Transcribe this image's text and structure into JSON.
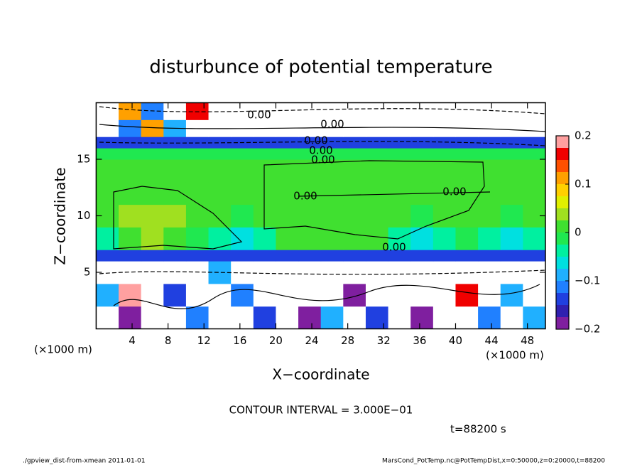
{
  "chart_data": {
    "type": "heatmap",
    "title": "disturbunce of potential temperature",
    "xlabel": "X−coordinate",
    "ylabel": "Z−coordinate",
    "xlim": [
      0,
      50
    ],
    "ylim": [
      0,
      20
    ],
    "xticks": [
      4,
      8,
      12,
      16,
      20,
      24,
      28,
      32,
      36,
      40,
      44,
      48
    ],
    "yticks": [
      5,
      10,
      15
    ],
    "x_edges": [
      0,
      2.5,
      5,
      7.5,
      10,
      12.5,
      15,
      17.5,
      20,
      22.5,
      25,
      27.5,
      30,
      32.5,
      35,
      37.5,
      40,
      42.5,
      45,
      47.5,
      50
    ],
    "y_edges": [
      0,
      2,
      4,
      6,
      7,
      9,
      11,
      13,
      15,
      16,
      17,
      18.5,
      20
    ],
    "z": [
      [
        0.3,
        -0.18,
        0.3,
        0.3,
        -0.12,
        0.3,
        0.3,
        -0.15,
        0.3,
        -0.19,
        -0.1,
        0.3,
        -0.15,
        0.3,
        -0.19,
        0.3,
        0.3,
        -0.12,
        0.3,
        -0.1
      ],
      [
        -0.1,
        0.18,
        0.3,
        -0.15,
        0.3,
        0.3,
        -0.12,
        0.3,
        0.3,
        0.3,
        0.3,
        -0.18,
        0.3,
        0.3,
        0.3,
        0.3,
        0.15,
        0.3,
        -0.08,
        0.3
      ],
      [
        0.3,
        0.3,
        0.3,
        0.3,
        0.3,
        -0.1,
        0.3,
        0.3,
        0.3,
        0.3,
        0.3,
        0.3,
        0.3,
        0.3,
        0.3,
        0.3,
        0.3,
        0.3,
        0.3,
        0.3
      ],
      [
        -0.15,
        -0.15,
        -0.15,
        -0.15,
        -0.15,
        -0.15,
        -0.15,
        -0.15,
        -0.15,
        -0.15,
        -0.15,
        -0.15,
        -0.15,
        -0.15,
        -0.15,
        -0.15,
        -0.15,
        -0.15,
        -0.15,
        -0.15
      ],
      [
        -0.05,
        0.01,
        0.03,
        0.02,
        -0.02,
        -0.04,
        -0.06,
        -0.03,
        0,
        0,
        0,
        0,
        0,
        -0.03,
        -0.06,
        -0.04,
        -0.02,
        -0.04,
        -0.06,
        -0.05
      ],
      [
        0.01,
        0.03,
        0.04,
        0.03,
        0.01,
        0,
        -0.01,
        0,
        0,
        0,
        0,
        0,
        0,
        0,
        -0.01,
        0,
        0.01,
        0,
        -0.01,
        0
      ],
      [
        0,
        0.01,
        0.02,
        0.01,
        0,
        0,
        0,
        0,
        0,
        0,
        0,
        0,
        0,
        0,
        0,
        0,
        0,
        0,
        0,
        0
      ],
      [
        0,
        0,
        0,
        0,
        0,
        0,
        0,
        0,
        0,
        0,
        0,
        0,
        0,
        0,
        0,
        0,
        0,
        0,
        0,
        0
      ],
      [
        -0.01,
        -0.01,
        -0.01,
        -0.01,
        -0.01,
        -0.01,
        -0.01,
        -0.01,
        -0.01,
        -0.01,
        -0.01,
        -0.01,
        -0.01,
        -0.01,
        -0.01,
        -0.01,
        -0.01,
        -0.01,
        -0.01,
        -0.01
      ],
      [
        -0.15,
        -0.15,
        -0.15,
        -0.15,
        -0.15,
        -0.15,
        -0.15,
        -0.15,
        -0.15,
        -0.15,
        -0.15,
        -0.15,
        -0.15,
        -0.15,
        -0.15,
        -0.15,
        -0.15,
        -0.15,
        -0.15,
        -0.15
      ],
      [
        0.3,
        -0.12,
        0.12,
        -0.1,
        0.3,
        0.3,
        0.3,
        0.3,
        0.3,
        0.3,
        0.3,
        0.3,
        0.3,
        0.3,
        0.3,
        0.3,
        0.3,
        0.3,
        0.3,
        0.3
      ],
      [
        0.3,
        0.1,
        -0.12,
        0.3,
        0.15,
        0.3,
        0.3,
        0.3,
        0.3,
        0.3,
        0.3,
        0.3,
        0.3,
        0.3,
        0.3,
        0.3,
        0.3,
        0.3,
        0.3,
        0.3
      ]
    ],
    "levels": [
      -0.2,
      -0.175,
      -0.15,
      -0.125,
      -0.1,
      -0.075,
      -0.05,
      -0.025,
      0,
      0.025,
      0.05,
      0.075,
      0.1,
      0.125,
      0.15,
      0.175,
      0.2
    ],
    "colors": [
      "#7f1f9f",
      "#3020b0",
      "#2040e0",
      "#2080ff",
      "#20b0ff",
      "#00e0e0",
      "#00f0a0",
      "#20e850",
      "#40e030",
      "#a0e020",
      "#e0f000",
      "#ffd000",
      "#ffa000",
      "#ff5000",
      "#f00000",
      "#ffa0a0"
    ],
    "colorbar_ticks": [
      {
        "value": 0.2,
        "label": "0.2"
      },
      {
        "value": 0.1,
        "label": "0.1"
      },
      0,
      {
        "value": -0.1,
        "label": "−0.1"
      },
      {
        "value": -0.2,
        "label": "−0.2"
      }
    ],
    "contour_labels": [
      "0.00",
      "0.00",
      "0.00",
      "0.00",
      "0.00",
      "0.00",
      "0.00",
      "0.00"
    ],
    "x_unit_left": "(×1000 m)",
    "x_unit_right": "(×1000 m)",
    "contour_interval": "CONTOUR INTERVAL = 3.000E−01",
    "time": "t=88200 s",
    "footer_left": "./gpview_dist-from-xmean  2011-01-01",
    "footer_right": "MarsCond_PotTemp.nc@PotTempDist,x=0:50000,z=0:20000,t=88200"
  }
}
